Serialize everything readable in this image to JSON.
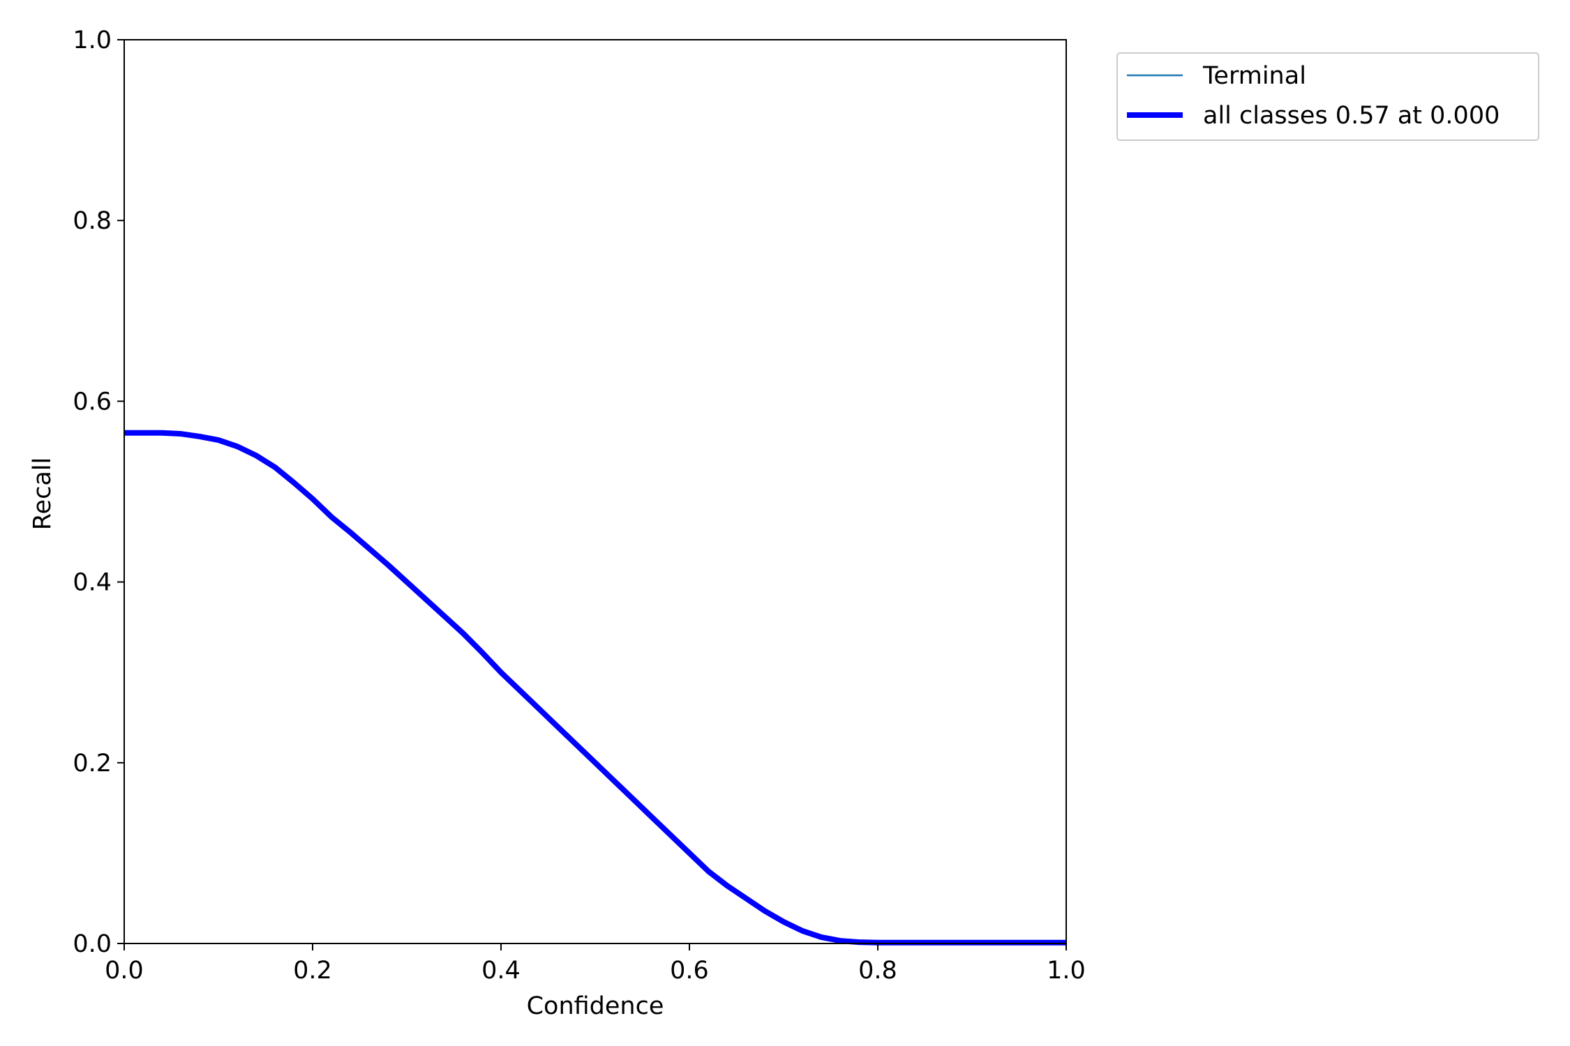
{
  "chart_data": {
    "type": "line",
    "title": "",
    "xlabel": "Confidence",
    "ylabel": "Recall",
    "xlim": [
      0.0,
      1.0
    ],
    "ylim": [
      0.0,
      1.0
    ],
    "xticks": [
      "0.0",
      "0.2",
      "0.4",
      "0.6",
      "0.8",
      "1.0"
    ],
    "yticks": [
      "0.0",
      "0.2",
      "0.4",
      "0.6",
      "0.8",
      "1.0"
    ],
    "grid": false,
    "legend_position": "outside-top-right",
    "series": [
      {
        "name": "Terminal",
        "color": "#1f77b4",
        "style": "thin",
        "x": [],
        "y": []
      },
      {
        "name": "all classes 0.57 at 0.000",
        "color": "#0000ff",
        "style": "thick",
        "x": [
          0.0,
          0.02,
          0.04,
          0.06,
          0.08,
          0.1,
          0.12,
          0.14,
          0.16,
          0.18,
          0.2,
          0.22,
          0.24,
          0.26,
          0.28,
          0.3,
          0.32,
          0.34,
          0.36,
          0.38,
          0.4,
          0.42,
          0.44,
          0.46,
          0.48,
          0.5,
          0.52,
          0.54,
          0.56,
          0.58,
          0.6,
          0.62,
          0.64,
          0.66,
          0.68,
          0.7,
          0.72,
          0.74,
          0.76,
          0.78,
          0.8,
          0.85,
          0.9,
          0.95,
          1.0
        ],
        "y": [
          0.565,
          0.565,
          0.565,
          0.564,
          0.561,
          0.557,
          0.55,
          0.54,
          0.527,
          0.51,
          0.492,
          0.472,
          0.455,
          0.437,
          0.419,
          0.4,
          0.381,
          0.362,
          0.343,
          0.322,
          0.3,
          0.28,
          0.26,
          0.24,
          0.22,
          0.2,
          0.18,
          0.16,
          0.14,
          0.12,
          0.1,
          0.08,
          0.064,
          0.05,
          0.036,
          0.024,
          0.014,
          0.007,
          0.003,
          0.0015,
          0.001,
          0.001,
          0.001,
          0.001,
          0.001
        ]
      }
    ]
  }
}
